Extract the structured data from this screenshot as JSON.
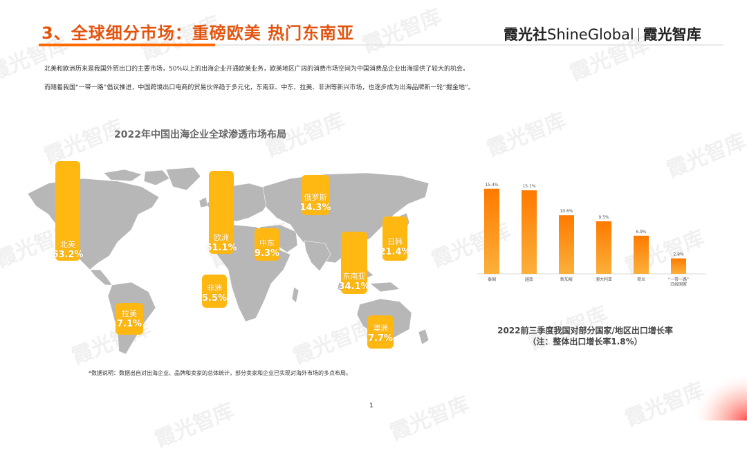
{
  "header": {
    "title": "3、全球细分市场：重磅欧美 热门东南亚",
    "brand_left": "霞光社",
    "brand_en": "ShineGlobal",
    "brand_right": "霞光智库"
  },
  "intro": {
    "paragraph1": "北美和欧洲历来是我国外贸出口的主要市场，50%以上的出海企业开通欧美业务，欧美地区广阔的消费市场空间为中国消费品企业出海提供了较大的机会。",
    "paragraph2": "而随着我国“一带一路”倡议推进，中国跨境出口电商的贸易伙伴趋于多元化，东南亚、中东、拉美、非洲等新兴市场，也逐步成为出海品牌新一轮“掘金地”。"
  },
  "map": {
    "title": "2022年中国出海企业全球渗透市场布局",
    "markets": [
      {
        "name": "北美",
        "value": "63.2%",
        "pct": 63.2
      },
      {
        "name": "欧洲",
        "value": "51.1%",
        "pct": 51.1
      },
      {
        "name": "俄罗斯",
        "value": "14.3%",
        "pct": 14.3
      },
      {
        "name": "中东",
        "value": "9.3%",
        "pct": 9.3
      },
      {
        "name": "日韩",
        "value": "21.4%",
        "pct": 21.4
      },
      {
        "name": "东南亚",
        "value": "34.1%",
        "pct": 34.1
      },
      {
        "name": "非洲",
        "value": "5.5%",
        "pct": 5.5
      },
      {
        "name": "拉美",
        "value": "7.1%",
        "pct": 7.1
      },
      {
        "name": "澳洲",
        "value": "7.7%",
        "pct": 7.7
      }
    ],
    "note": "*数据说明：数据出自对出海企业、品牌和卖家的总体统计，部分卖家和企业已实现对海外市场的多点布局。"
  },
  "chart_data": {
    "type": "bar",
    "title": "2022前三季度我国对部分国家/地区出口增长率",
    "subtitle": "（注：整体出口增长率1.8%）",
    "categories": [
      "泰国",
      "越南",
      "新加坡",
      "澳大利亚",
      "荷兰",
      "“一带一路”沿线国家"
    ],
    "values": [
      15.4,
      15.1,
      10.6,
      9.5,
      6.9,
      2.8
    ],
    "value_labels": [
      "15.4%",
      "15.1%",
      "10.6%",
      "9.5%",
      "6.9%",
      "2.8%"
    ],
    "ylim": [
      0,
      16
    ],
    "colors": {
      "top": "#ff8a00",
      "bottom": "#f9a21e"
    }
  },
  "watermark": "霞光智库",
  "page_number": "1"
}
